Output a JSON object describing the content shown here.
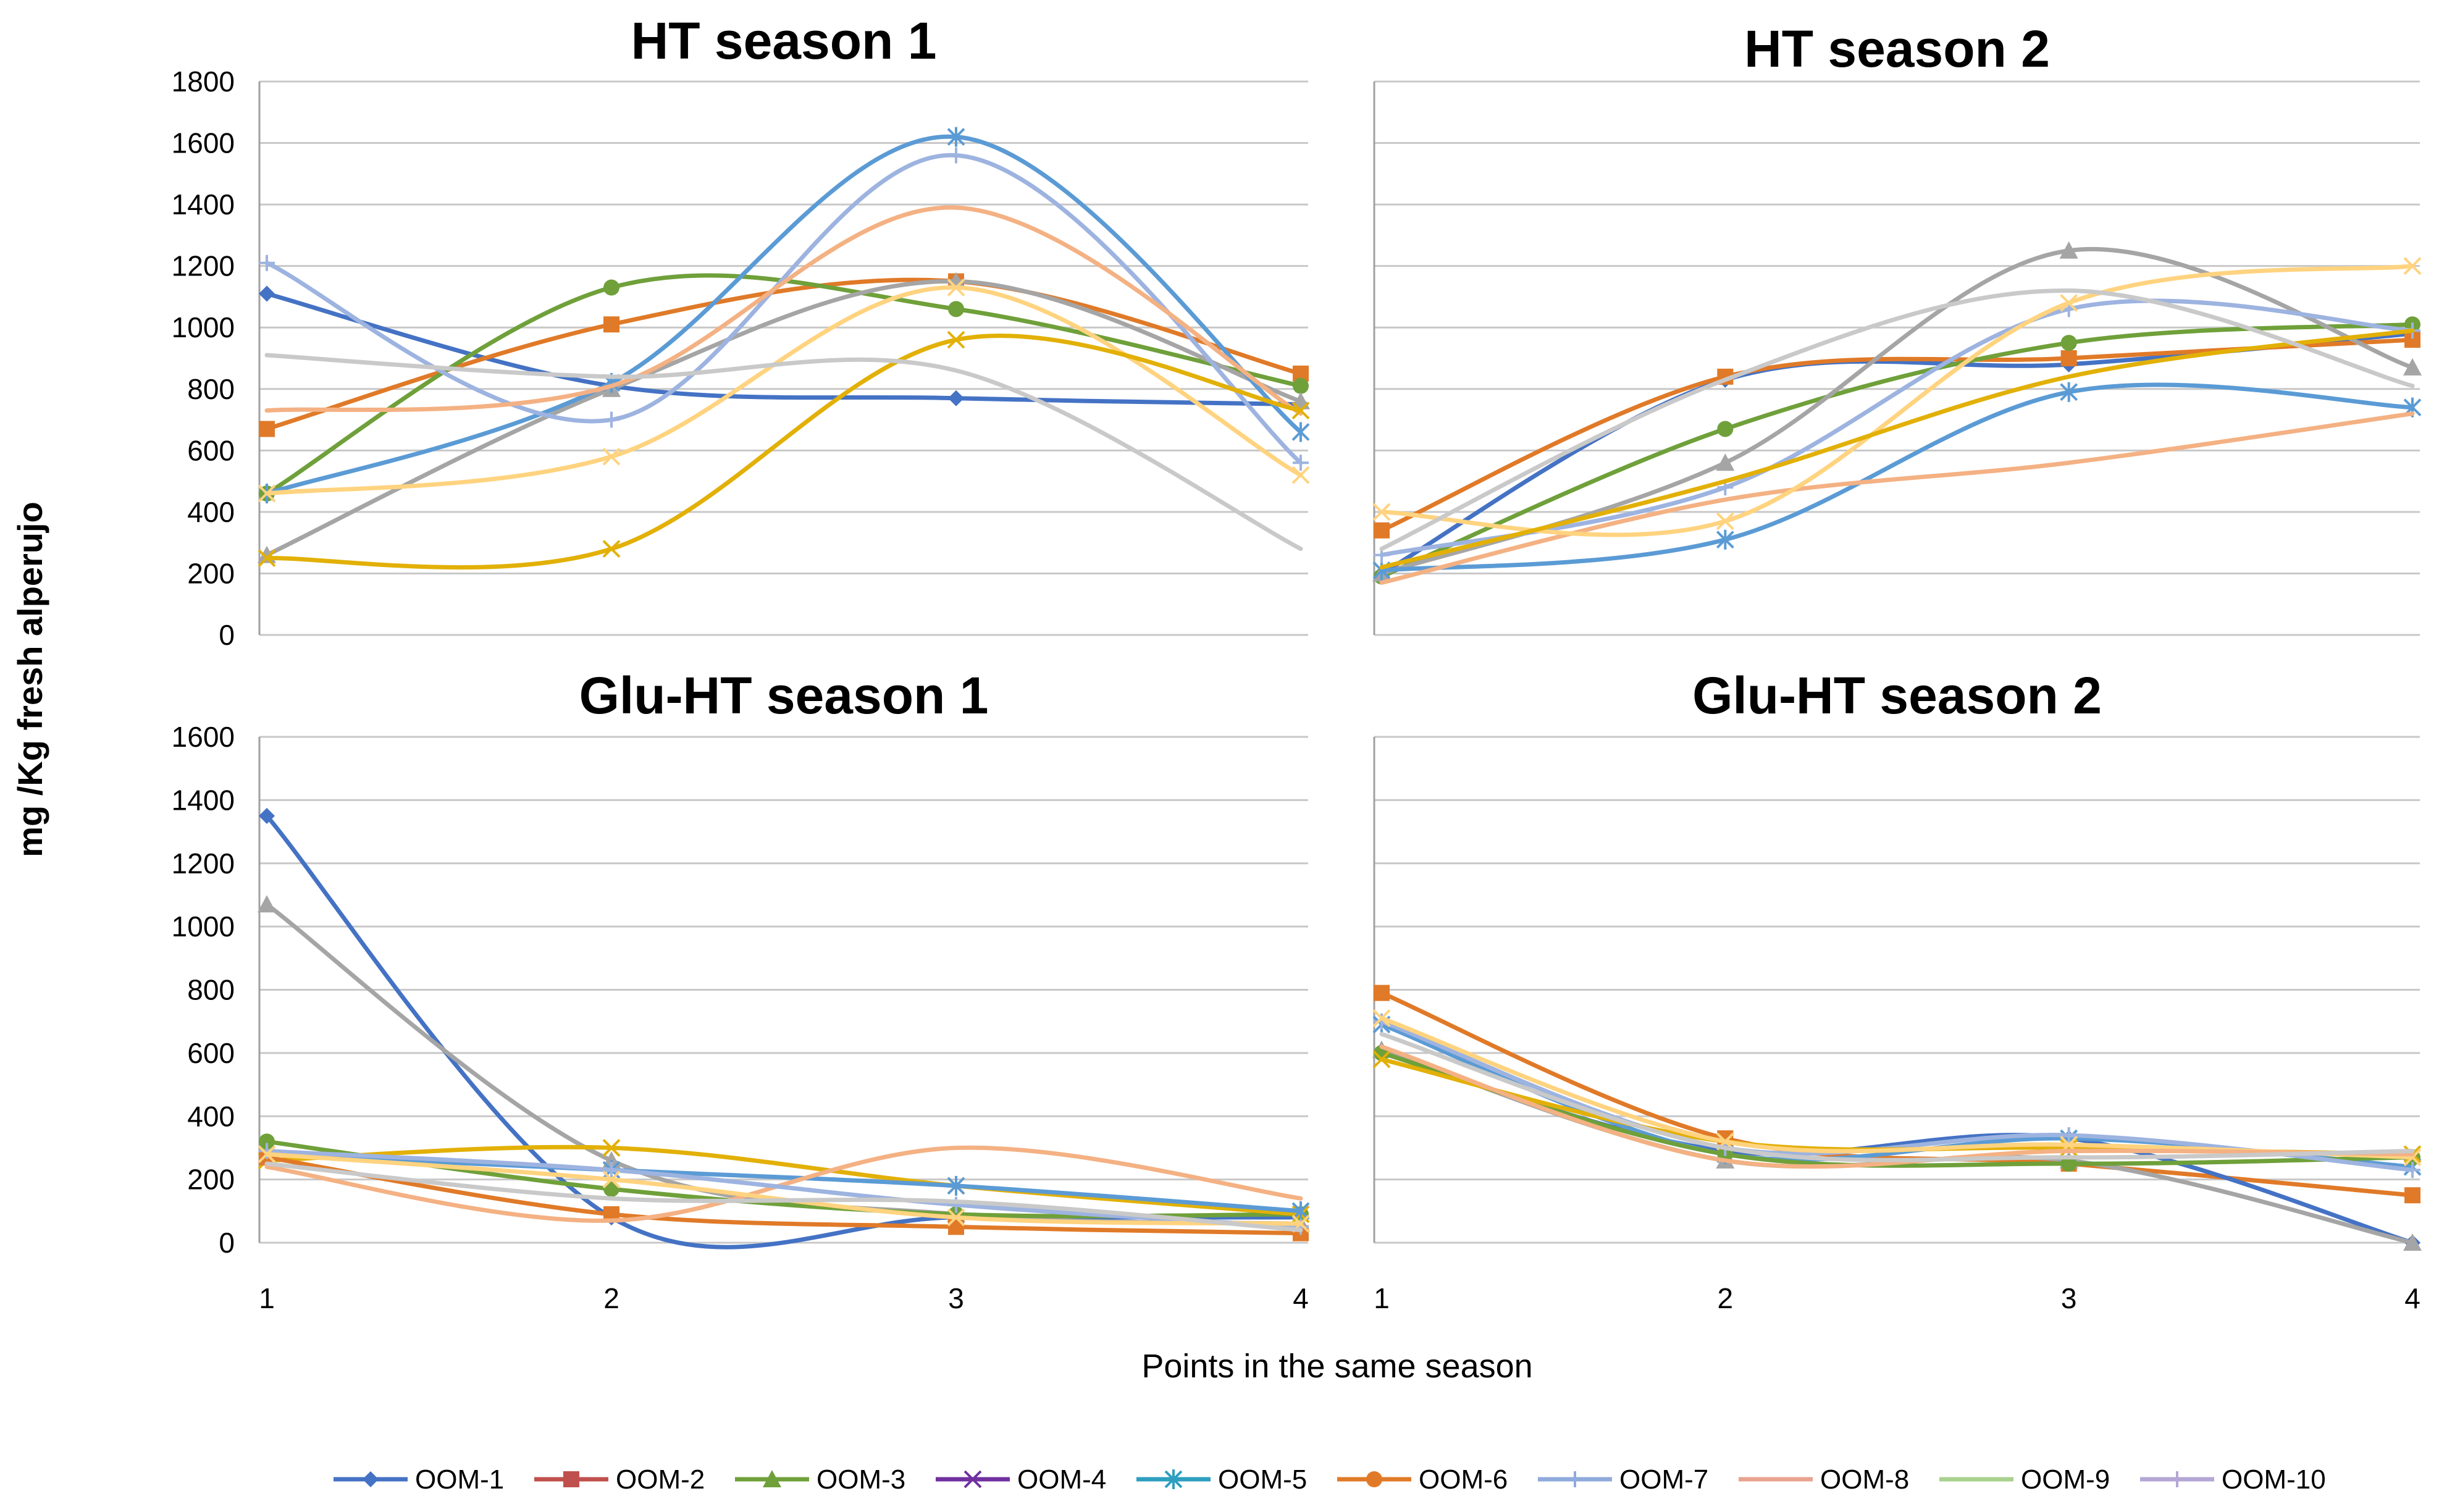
{
  "ylabel": "mg /Kg fresh alperujo",
  "xlabel": "Points in the same season",
  "legend": [
    "OOM-1",
    "OOM-2",
    "OOM-3",
    "OOM-4",
    "OOM-5",
    "OOM-6",
    "OOM-7",
    "OOM-8",
    "OOM-9",
    "OOM-10"
  ],
  "colors": {
    "OOM-1": "#4472C4",
    "OOM-2": "#C0504D",
    "OOM-3": "#6FA03A",
    "OOM-4": "#7030A0",
    "OOM-5": "#2E9FBF",
    "OOM-6": "#E07A28",
    "OOM-7": "#8FAADC",
    "OOM-8": "#E8A38F",
    "OOM-9": "#A9D18E",
    "OOM-10": "#B4A7D6"
  },
  "chart_data": [
    {
      "type": "line",
      "title": "HT season 1",
      "x": [
        1,
        2,
        3,
        4
      ],
      "xticks": [
        "1",
        "2",
        "3",
        "4"
      ],
      "ylim": [
        0,
        1800
      ],
      "yticks": [
        0,
        200,
        400,
        600,
        800,
        1000,
        1200,
        1400,
        1600,
        1800
      ],
      "series": [
        {
          "color": "#4472C4",
          "marker": "diamond",
          "values": [
            1110,
            810,
            770,
            750
          ]
        },
        {
          "color": "#E07A28",
          "marker": "square",
          "values": [
            670,
            1010,
            1150,
            850
          ]
        },
        {
          "color": "#6FA03A",
          "marker": "circle",
          "values": [
            460,
            1130,
            1060,
            810
          ]
        },
        {
          "color": "#A5A5A5",
          "marker": "triangle",
          "values": [
            260,
            800,
            1150,
            760
          ]
        },
        {
          "color": "#5B9BD5",
          "marker": "star",
          "values": [
            460,
            820,
            1620,
            660
          ]
        },
        {
          "color": "#9DB3E0",
          "marker": "plus",
          "values": [
            1210,
            700,
            1560,
            560
          ]
        },
        {
          "color": "#F4B183",
          "marker": "none",
          "values": [
            730,
            810,
            1390,
            720
          ]
        },
        {
          "color": "#FFD37F",
          "marker": "x",
          "values": [
            460,
            580,
            1130,
            520
          ]
        },
        {
          "color": "#E2B007",
          "marker": "x",
          "values": [
            250,
            280,
            960,
            730
          ]
        },
        {
          "color": "#C9C9C9",
          "marker": "none",
          "values": [
            910,
            840,
            860,
            280
          ]
        }
      ]
    },
    {
      "type": "line",
      "title": "HT season 2",
      "x": [
        1,
        2,
        3,
        4
      ],
      "xticks": [
        "1",
        "2",
        "3",
        "4"
      ],
      "ylim": [
        0,
        1800
      ],
      "yticks": [],
      "series": [
        {
          "color": "#4472C4",
          "marker": "diamond",
          "values": [
            200,
            830,
            880,
            980
          ]
        },
        {
          "color": "#E07A28",
          "marker": "square",
          "values": [
            340,
            840,
            900,
            960
          ]
        },
        {
          "color": "#6FA03A",
          "marker": "circle",
          "values": [
            190,
            670,
            950,
            1010
          ]
        },
        {
          "color": "#A5A5A5",
          "marker": "triangle",
          "values": [
            200,
            560,
            1250,
            870
          ]
        },
        {
          "color": "#5B9BD5",
          "marker": "star",
          "values": [
            210,
            310,
            790,
            740
          ]
        },
        {
          "color": "#9DB3E0",
          "marker": "plus",
          "values": [
            260,
            480,
            1060,
            990
          ]
        },
        {
          "color": "#F4B183",
          "marker": "none",
          "values": [
            170,
            440,
            560,
            720
          ]
        },
        {
          "color": "#FFD37F",
          "marker": "x",
          "values": [
            400,
            370,
            1080,
            1200
          ]
        },
        {
          "color": "#E2B007",
          "marker": "none",
          "values": [
            220,
            500,
            840,
            990
          ]
        },
        {
          "color": "#C9C9C9",
          "marker": "none",
          "values": [
            280,
            830,
            1120,
            810
          ]
        }
      ]
    },
    {
      "type": "line",
      "title": "Glu-HT season 1",
      "x": [
        1,
        2,
        3,
        4
      ],
      "xticks": [
        "1",
        "2",
        "3",
        "4"
      ],
      "ylim": [
        0,
        1600
      ],
      "yticks": [
        0,
        200,
        400,
        600,
        800,
        1000,
        1200,
        1400,
        1600
      ],
      "series": [
        {
          "color": "#4472C4",
          "marker": "diamond",
          "values": [
            1350,
            80,
            80,
            80
          ]
        },
        {
          "color": "#A5A5A5",
          "marker": "triangle",
          "values": [
            1070,
            260,
            90,
            60
          ]
        },
        {
          "color": "#6FA03A",
          "marker": "circle",
          "values": [
            320,
            170,
            90,
            90
          ]
        },
        {
          "color": "#E2B007",
          "marker": "x",
          "values": [
            260,
            300,
            180,
            90
          ]
        },
        {
          "color": "#5B9BD5",
          "marker": "star",
          "values": [
            280,
            230,
            180,
            100
          ]
        },
        {
          "color": "#E07A28",
          "marker": "square",
          "values": [
            270,
            90,
            50,
            30
          ]
        },
        {
          "color": "#F4B183",
          "marker": "none",
          "values": [
            240,
            70,
            300,
            140
          ]
        },
        {
          "color": "#9DB3E0",
          "marker": "plus",
          "values": [
            290,
            230,
            120,
            50
          ]
        },
        {
          "color": "#FFD37F",
          "marker": "x",
          "values": [
            280,
            200,
            80,
            60
          ]
        },
        {
          "color": "#C9C9C9",
          "marker": "none",
          "values": [
            250,
            140,
            130,
            40
          ]
        }
      ]
    },
    {
      "type": "line",
      "title": "Glu-HT season 2",
      "x": [
        1,
        2,
        3,
        4
      ],
      "xticks": [
        "1",
        "2",
        "3",
        "4"
      ],
      "ylim": [
        0,
        1600
      ],
      "yticks": [],
      "series": [
        {
          "color": "#E07A28",
          "marker": "square",
          "values": [
            790,
            330,
            250,
            150
          ]
        },
        {
          "color": "#4472C4",
          "marker": "diamond",
          "values": [
            600,
            290,
            330,
            0
          ]
        },
        {
          "color": "#A5A5A5",
          "marker": "triangle",
          "values": [
            610,
            260,
            260,
            0
          ]
        },
        {
          "color": "#5B9BD5",
          "marker": "star",
          "values": [
            690,
            280,
            330,
            240
          ]
        },
        {
          "color": "#6FA03A",
          "marker": "circle",
          "values": [
            600,
            280,
            250,
            270
          ]
        },
        {
          "color": "#9DB3E0",
          "marker": "plus",
          "values": [
            700,
            300,
            340,
            230
          ]
        },
        {
          "color": "#E2B007",
          "marker": "x",
          "values": [
            580,
            320,
            300,
            280
          ]
        },
        {
          "color": "#FFD37F",
          "marker": "x",
          "values": [
            710,
            320,
            310,
            270
          ]
        },
        {
          "color": "#F4B183",
          "marker": "none",
          "values": [
            620,
            260,
            290,
            280
          ]
        },
        {
          "color": "#C9C9C9",
          "marker": "none",
          "values": [
            660,
            300,
            270,
            290
          ]
        }
      ]
    }
  ]
}
